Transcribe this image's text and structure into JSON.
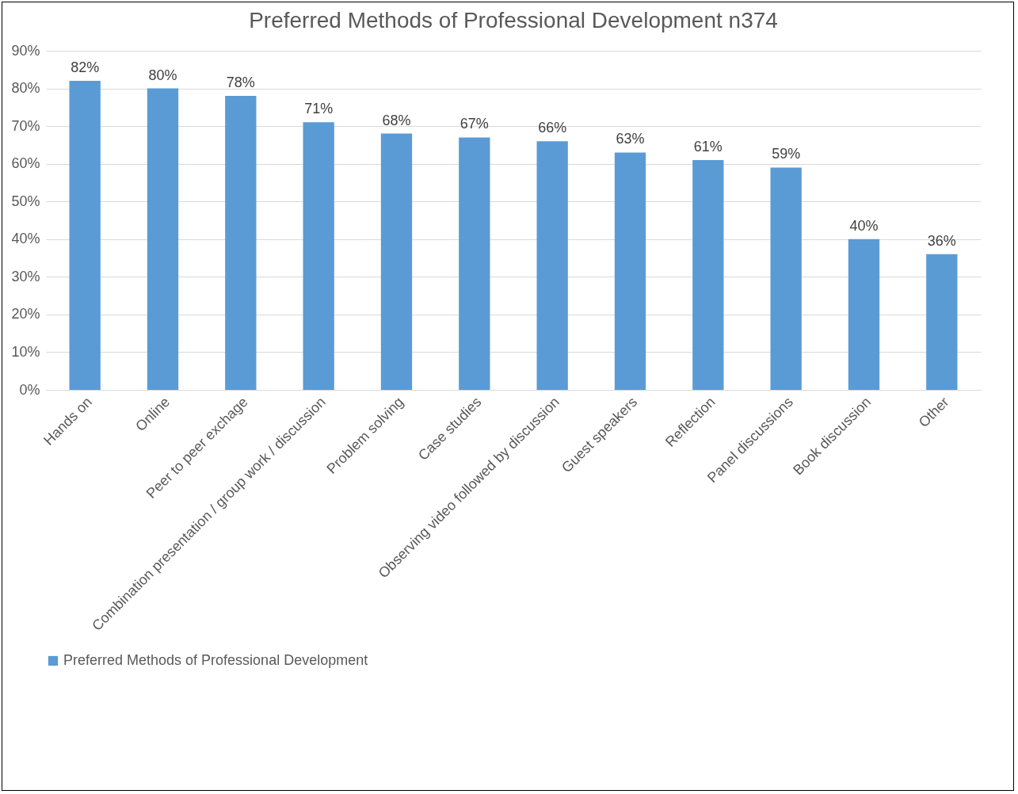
{
  "chart_data": {
    "type": "bar",
    "title": "Preferred Methods of Professional Development n374",
    "categories": [
      "Hands on",
      "Online",
      "Peer to peer exchage",
      "Combination presentation / group work / discussion",
      "Problem solving",
      "Case studies",
      "Observing video followed by discussion",
      "Guest speakers",
      "Reflection",
      "Panel discussions",
      "Book discussion",
      "Other"
    ],
    "series": [
      {
        "name": "Preferred Methods of Professional Development",
        "color": "#5b9bd5",
        "values": [
          82,
          80,
          78,
          71,
          68,
          67,
          66,
          63,
          61,
          59,
          40,
          36
        ],
        "value_labels": [
          "82%",
          "80%",
          "78%",
          "71%",
          "68%",
          "67%",
          "66%",
          "63%",
          "61%",
          "59%",
          "40%",
          "36%"
        ]
      }
    ],
    "ylim": [
      0,
      90
    ],
    "yticks": [
      {
        "value": 0,
        "label": "0%"
      },
      {
        "value": 10,
        "label": "10%"
      },
      {
        "value": 20,
        "label": "20%"
      },
      {
        "value": 30,
        "label": "30%"
      },
      {
        "value": 40,
        "label": "40%"
      },
      {
        "value": 50,
        "label": "50%"
      },
      {
        "value": 60,
        "label": "60%"
      },
      {
        "value": 70,
        "label": "70%"
      },
      {
        "value": 80,
        "label": "80%"
      },
      {
        "value": 90,
        "label": "90%"
      }
    ],
    "grid": "y",
    "legend": "bottom"
  }
}
